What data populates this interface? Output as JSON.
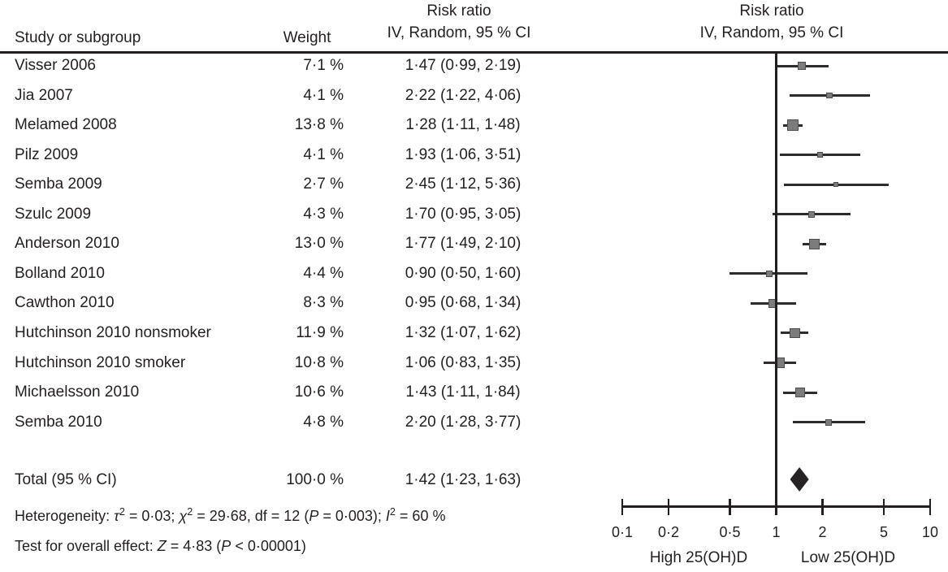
{
  "figure": {
    "columns": {
      "study_header": "Study or subgroup",
      "weight_header": "Weight",
      "effect_header_line1": "Risk ratio",
      "effect_header_line2": "IV, Random, 95 % CI",
      "plot_header_line1": "Risk ratio",
      "plot_header_line2": "IV, Random, 95 % CI"
    },
    "footer": {
      "heterogeneity_segments": [
        {
          "t": "Heterogeneity: "
        },
        {
          "t": "τ",
          "i": 1
        },
        {
          "t": "2",
          "s": 1
        },
        {
          "t": " = 0·03; "
        },
        {
          "t": "χ",
          "i": 1
        },
        {
          "t": "2",
          "s": 1
        },
        {
          "t": " = 29·68, df = 12 ("
        },
        {
          "t": "P",
          "i": 1
        },
        {
          "t": " = 0·003); "
        },
        {
          "t": "I",
          "i": 1
        },
        {
          "t": "2",
          "s": 1
        },
        {
          "t": " = 60 %"
        }
      ],
      "overall_effect_segments": [
        {
          "t": "Test for overall effect: "
        },
        {
          "t": "Z",
          "i": 1
        },
        {
          "t": " = 4·83 ("
        },
        {
          "t": "P",
          "i": 1
        },
        {
          "t": " < 0·00001)"
        }
      ]
    }
  },
  "chart_data": {
    "type": "scatter",
    "subtype": "forest-plot",
    "title": "Risk ratio, IV, Random, 95 % CI",
    "x_scale": "log",
    "x_range": [
      0.1,
      10
    ],
    "x_ticks": [
      0.1,
      0.2,
      0.5,
      1,
      2,
      5,
      10
    ],
    "x_tick_labels": [
      "0·1",
      "0·2",
      "0·5",
      "1",
      "2",
      "5",
      "10"
    ],
    "x_left_label": "High 25(OH)D",
    "x_right_label": "Low 25(OH)D",
    "no_effect_value": 1,
    "studies": [
      {
        "name": "Visser 2006",
        "weight_label": "7·1 %",
        "weight_pct": 7.1,
        "rr_ci_label": "1·47 (0·99, 2·19)",
        "rr": 1.47,
        "ci_low": 0.99,
        "ci_high": 2.19
      },
      {
        "name": "Jia 2007",
        "weight_label": "4·1 %",
        "weight_pct": 4.1,
        "rr_ci_label": "2·22 (1·22, 4·06)",
        "rr": 2.22,
        "ci_low": 1.22,
        "ci_high": 4.06
      },
      {
        "name": "Melamed 2008",
        "weight_label": "13·8 %",
        "weight_pct": 13.8,
        "rr_ci_label": "1·28 (1·11, 1·48)",
        "rr": 1.28,
        "ci_low": 1.11,
        "ci_high": 1.48
      },
      {
        "name": "Pilz 2009",
        "weight_label": "4·1 %",
        "weight_pct": 4.1,
        "rr_ci_label": "1·93 (1·06, 3·51)",
        "rr": 1.93,
        "ci_low": 1.06,
        "ci_high": 3.51
      },
      {
        "name": "Semba 2009",
        "weight_label": "2·7 %",
        "weight_pct": 2.7,
        "rr_ci_label": "2·45 (1·12, 5·36)",
        "rr": 2.45,
        "ci_low": 1.12,
        "ci_high": 5.36
      },
      {
        "name": "Szulc 2009",
        "weight_label": "4·3 %",
        "weight_pct": 4.3,
        "rr_ci_label": "1·70 (0·95, 3·05)",
        "rr": 1.7,
        "ci_low": 0.95,
        "ci_high": 3.05
      },
      {
        "name": "Anderson 2010",
        "weight_label": "13·0 %",
        "weight_pct": 13.0,
        "rr_ci_label": "1·77 (1·49, 2·10)",
        "rr": 1.77,
        "ci_low": 1.49,
        "ci_high": 2.1
      },
      {
        "name": "Bolland 2010",
        "weight_label": "4·4 %",
        "weight_pct": 4.4,
        "rr_ci_label": "0·90 (0·50, 1·60)",
        "rr": 0.9,
        "ci_low": 0.5,
        "ci_high": 1.6
      },
      {
        "name": "Cawthon 2010",
        "weight_label": "8·3 %",
        "weight_pct": 8.3,
        "rr_ci_label": "0·95 (0·68, 1·34)",
        "rr": 0.95,
        "ci_low": 0.68,
        "ci_high": 1.34
      },
      {
        "name": "Hutchinson 2010 nonsmoker",
        "weight_label": "11·9 %",
        "weight_pct": 11.9,
        "rr_ci_label": "1·32 (1·07, 1·62)",
        "rr": 1.32,
        "ci_low": 1.07,
        "ci_high": 1.62
      },
      {
        "name": "Hutchinson 2010 smoker",
        "weight_label": "10·8 %",
        "weight_pct": 10.8,
        "rr_ci_label": "1·06 (0·83, 1·35)",
        "rr": 1.06,
        "ci_low": 0.83,
        "ci_high": 1.35
      },
      {
        "name": "Michaelsson 2010",
        "weight_label": "10·6 %",
        "weight_pct": 10.6,
        "rr_ci_label": "1·43 (1·11, 1·84)",
        "rr": 1.43,
        "ci_low": 1.11,
        "ci_high": 1.84
      },
      {
        "name": "Semba 2010",
        "weight_label": "4·8 %",
        "weight_pct": 4.8,
        "rr_ci_label": "2·20 (1·28, 3·77)",
        "rr": 2.2,
        "ci_low": 1.28,
        "ci_high": 3.77
      }
    ],
    "total": {
      "name": "Total (95 % CI)",
      "weight_label": "100·0 %",
      "weight_pct": 100.0,
      "rr_ci_label": "1·42 (1·23, 1·63)",
      "rr": 1.42,
      "ci_low": 1.23,
      "ci_high": 1.63
    },
    "colors": {
      "text": "#231f20",
      "axis_line": "#231f20",
      "ci_line": "#2e2b2c",
      "square": "#7c7c7c",
      "square_border": "#4d4d4d",
      "diamond": "#272324"
    }
  }
}
